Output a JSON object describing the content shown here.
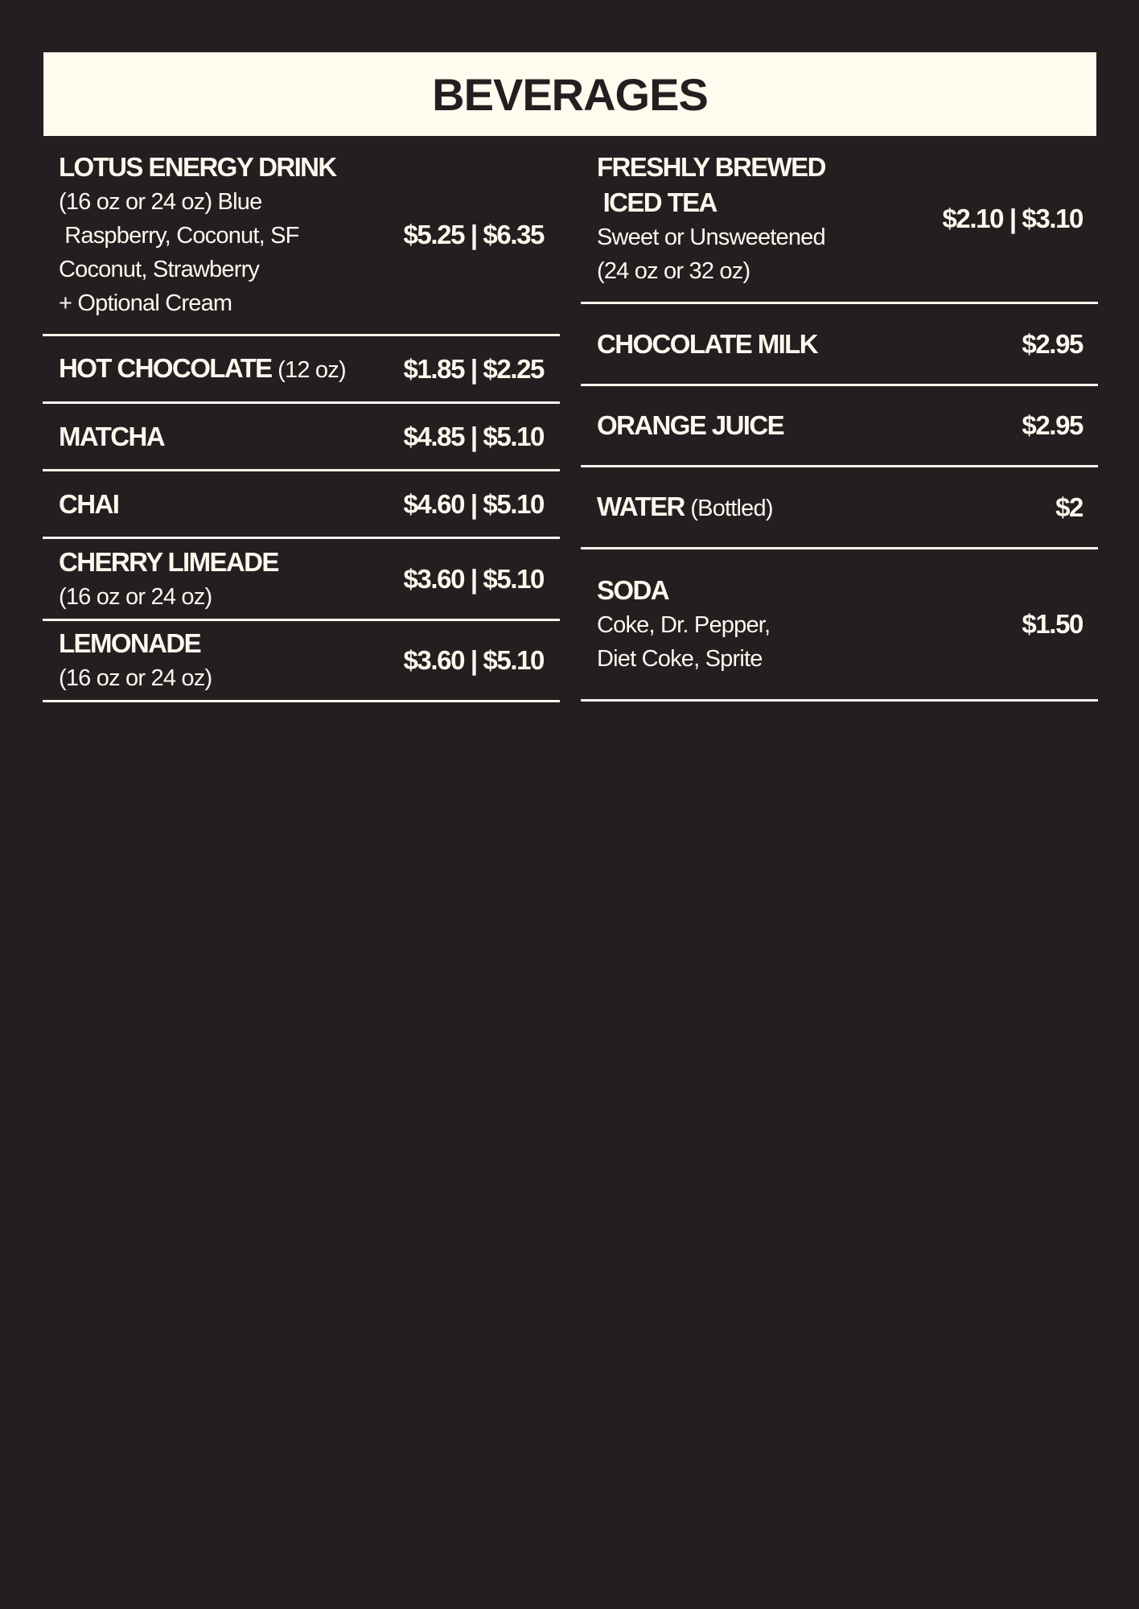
{
  "title": "BEVERAGES",
  "colors": {
    "background": "#231f20",
    "header_background": "#fdfcef",
    "text": "#fbf9ee"
  },
  "left_items": [
    {
      "name": "LOTUS ENERGY DRINK",
      "desc": [
        "(16 oz or 24 oz) Blue",
        " Raspberry, Coconut, SF",
        "Coconut, Strawberry",
        "+ Optional Cream"
      ],
      "price": "$5.25 | $6.35"
    },
    {
      "name": "HOT CHOCOLATE",
      "note": "(12 oz)",
      "price": "$1.85 | $2.25"
    },
    {
      "name": "MATCHA",
      "price": "$4.85 | $5.10"
    },
    {
      "name": "CHAI",
      "price": "$4.60 | $5.10"
    },
    {
      "name": "CHERRY LIMEADE",
      "desc": [
        "(16 oz or 24 oz)"
      ],
      "price": "$3.60 | $5.10"
    },
    {
      "name": "LEMONADE",
      "desc": [
        "(16 oz or 24 oz)"
      ],
      "price": "$3.60 | $5.10"
    }
  ],
  "right_items": [
    {
      "name": "FRESHLY BREWED",
      "name2": " ICED TEA",
      "desc": [
        "Sweet or Unsweetened",
        "(24 oz or 32 oz)"
      ],
      "price": "$2.10 | $3.10"
    },
    {
      "name": "CHOCOLATE MILK",
      "price": "$2.95"
    },
    {
      "name": "ORANGE JUICE",
      "price": "$2.95"
    },
    {
      "name": "WATER",
      "note": "(Bottled)",
      "price": "$2"
    },
    {
      "name": "SODA",
      "desc": [
        "Coke, Dr. Pepper,",
        "Diet Coke, Sprite"
      ],
      "price": "$1.50"
    }
  ]
}
